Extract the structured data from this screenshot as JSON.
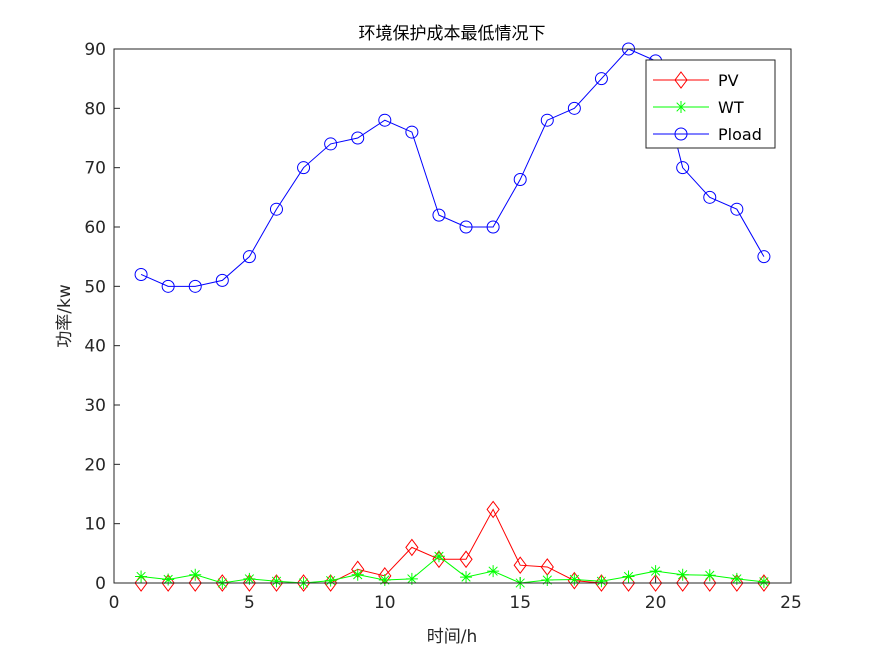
{
  "chart_data": {
    "type": "line",
    "title": "环境保护成本最低情况下",
    "xlabel": "时间/h",
    "ylabel": "功率/kw",
    "xlim": [
      0,
      25
    ],
    "ylim": [
      0,
      90
    ],
    "xticks": [
      0,
      5,
      10,
      15,
      20,
      25
    ],
    "yticks": [
      0,
      10,
      20,
      30,
      40,
      50,
      60,
      70,
      80,
      90
    ],
    "grid": false,
    "legend_position": "top-right",
    "x": [
      1,
      2,
      3,
      4,
      5,
      6,
      7,
      8,
      9,
      10,
      11,
      12,
      13,
      14,
      15,
      16,
      17,
      18,
      19,
      20,
      21,
      22,
      23,
      24
    ],
    "series": [
      {
        "name": "PV",
        "color": "#ff0000",
        "marker": "diamond",
        "values": [
          0,
          0,
          0,
          0,
          0,
          0,
          0,
          0,
          2.3,
          1.2,
          6,
          4,
          4,
          12.4,
          3,
          2.7,
          0.4,
          0,
          0,
          0,
          0,
          0,
          0,
          0
        ]
      },
      {
        "name": "WT",
        "color": "#00ff00",
        "marker": "asterisk",
        "values": [
          1.1,
          0.6,
          1.4,
          0,
          0.7,
          0.3,
          0,
          0.4,
          1.4,
          0.5,
          0.7,
          4.5,
          1,
          2,
          0,
          0.5,
          0.6,
          0.3,
          1.1,
          2,
          1.4,
          1.3,
          0.7,
          0.2
        ]
      },
      {
        "name": "Pload",
        "color": "#0000ff",
        "marker": "circle",
        "values": [
          52,
          50,
          50,
          51,
          55,
          63,
          70,
          74,
          75,
          78,
          76,
          62,
          60,
          60,
          68,
          78,
          80,
          85,
          90,
          88,
          70,
          65,
          63,
          55
        ]
      }
    ]
  }
}
